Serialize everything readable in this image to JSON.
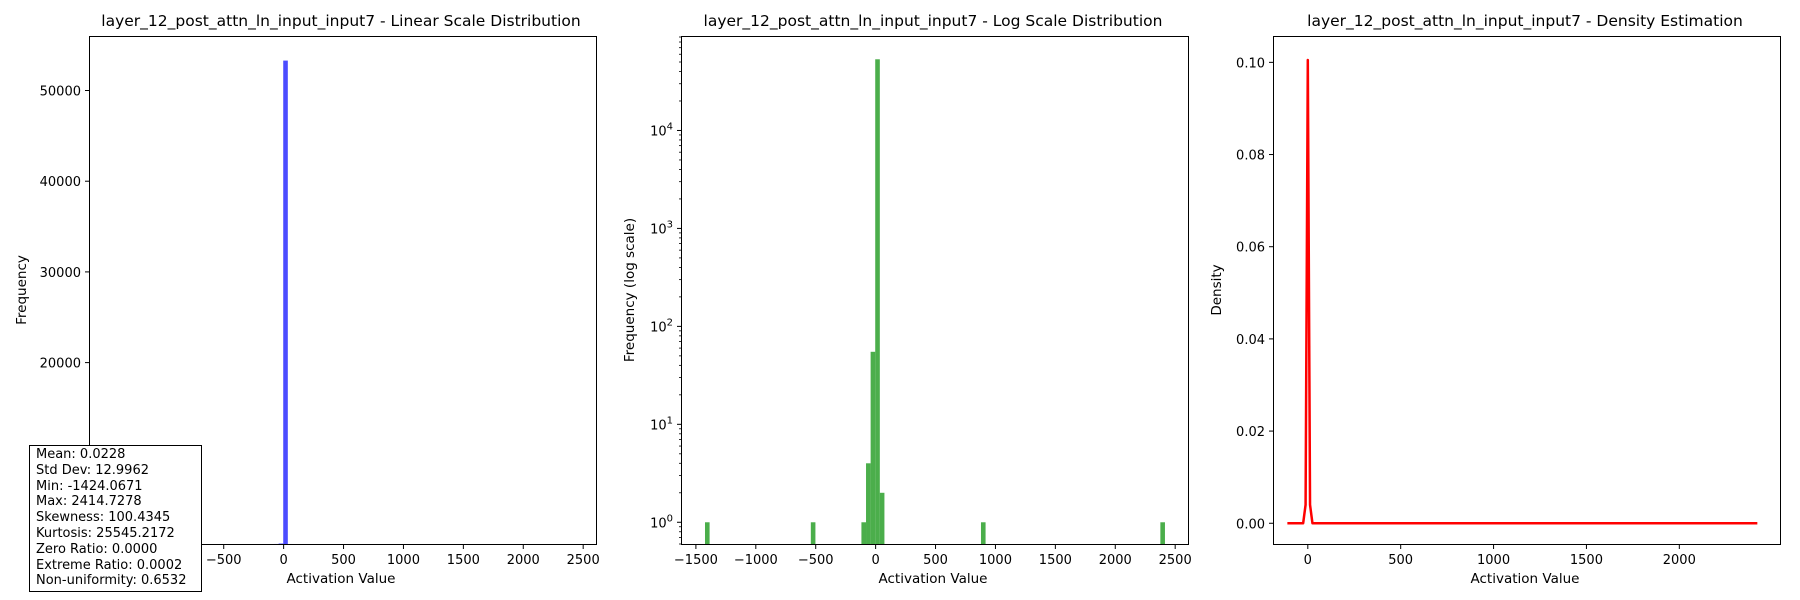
{
  "chart_data": [
    {
      "type": "bar",
      "title": "layer_12_post_attn_ln_input_input7 - Linear Scale Distribution",
      "xlabel": "Activation Value",
      "ylabel": "Frequency",
      "color": "#0000ff",
      "xlim": [
        -1616,
        2607
      ],
      "ylim": [
        0,
        55900
      ],
      "xticks": [
        -1500,
        -1000,
        -500,
        0,
        500,
        1000,
        1500,
        2000,
        2500
      ],
      "yticks": [
        0,
        10000,
        20000,
        30000,
        40000,
        50000
      ],
      "bars": [
        {
          "x0": -1424.07,
          "x1": -1385.68,
          "value": 1
        },
        {
          "x0": -540.9,
          "x1": -502.5,
          "value": 1
        },
        {
          "x0": -118.6,
          "x1": -80.2,
          "value": 1
        },
        {
          "x0": -80.2,
          "x1": -41.8,
          "value": 4
        },
        {
          "x0": -41.8,
          "x1": -3.4,
          "value": 55
        },
        {
          "x0": -3.4,
          "x1": 35.0,
          "value": 53300
        },
        {
          "x0": 35.0,
          "x1": 73.4,
          "value": 2
        },
        {
          "x0": 879.2,
          "x1": 917.6,
          "value": 1
        },
        {
          "x0": 2376.3,
          "x1": 2414.7,
          "value": 1
        }
      ],
      "stats_box": [
        "Mean: 0.0228",
        "Std Dev: 12.9962",
        "Min: -1424.0671",
        "Max: 2414.7278",
        "Skewness: 100.4345",
        "Kurtosis: 25545.2172",
        "Zero Ratio: 0.0000",
        "Extreme Ratio: 0.0002",
        "Non-uniformity: 0.6532"
      ]
    },
    {
      "type": "bar",
      "title": "layer_12_post_attn_ln_input_input7 - Log Scale Distribution",
      "xlabel": "Activation Value",
      "ylabel": "Frequency (log scale)",
      "yscale": "log",
      "color": "#2ca02c",
      "xlim": [
        -1616,
        2607
      ],
      "ylim": [
        0.6,
        90000
      ],
      "xticks": [
        -1500,
        -1000,
        -500,
        0,
        500,
        1000,
        1500,
        2000,
        2500
      ],
      "ytick_labels": [
        "10^0",
        "10^1",
        "10^2",
        "10^3",
        "10^4"
      ],
      "bars": [
        {
          "x0": -1424.07,
          "x1": -1385.68,
          "value": 1
        },
        {
          "x0": -540.9,
          "x1": -502.5,
          "value": 1
        },
        {
          "x0": -118.6,
          "x1": -80.2,
          "value": 1
        },
        {
          "x0": -80.2,
          "x1": -41.8,
          "value": 4
        },
        {
          "x0": -41.8,
          "x1": -3.4,
          "value": 55
        },
        {
          "x0": -3.4,
          "x1": 35.0,
          "value": 53300
        },
        {
          "x0": 35.0,
          "x1": 73.4,
          "value": 2
        },
        {
          "x0": 879.2,
          "x1": 917.6,
          "value": 1
        },
        {
          "x0": 2376.3,
          "x1": 2414.7,
          "value": 1
        }
      ]
    },
    {
      "type": "line",
      "title": "layer_12_post_attn_ln_input_input7 - Density Estimation",
      "xlabel": "Activation Value",
      "ylabel": "Density",
      "color": "#ff0000",
      "xlim": [
        -182,
        2542
      ],
      "ylim": [
        -0.0045,
        0.1055
      ],
      "xticks": [
        0,
        500,
        1000,
        1500,
        2000
      ],
      "yticks": [
        0.0,
        0.02,
        0.04,
        0.06,
        0.08,
        0.1
      ],
      "x": [
        -110,
        -40,
        -25,
        -12,
        -5,
        0,
        5,
        12,
        25,
        40,
        100,
        500,
        1000,
        1500,
        2000,
        2420
      ],
      "y": [
        0.0,
        0.0,
        0.0,
        0.004,
        0.06,
        0.1005,
        0.06,
        0.004,
        0.0,
        0.0,
        0.0,
        0.0,
        0.0,
        0.0,
        0.0,
        0.0
      ]
    }
  ]
}
